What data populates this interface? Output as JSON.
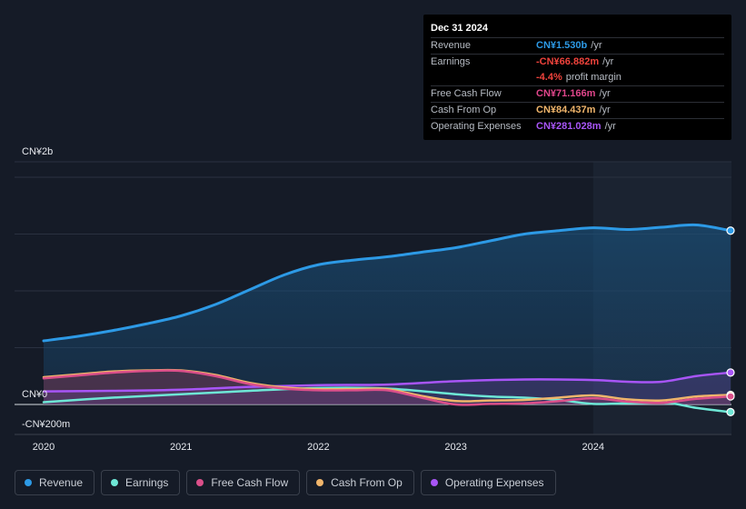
{
  "tooltip": {
    "date": "Dec 31 2024",
    "rows": [
      {
        "label": "Revenue",
        "value": "CN¥1.530b",
        "unit": "/yr",
        "color": "#2d9ae6"
      },
      {
        "label": "Earnings",
        "value": "-CN¥66.882m",
        "unit": "/yr",
        "color": "#f0433c"
      },
      {
        "label": "",
        "value": "-4.4%",
        "unit": "profit margin",
        "color": "#f0433c"
      },
      {
        "label": "Free Cash Flow",
        "value": "CN¥71.166m",
        "unit": "/yr",
        "color": "#e0468b"
      },
      {
        "label": "Cash From Op",
        "value": "CN¥84.437m",
        "unit": "/yr",
        "color": "#f0b56b"
      },
      {
        "label": "Operating Expenses",
        "value": "CN¥281.028m",
        "unit": "/yr",
        "color": "#a855f7"
      }
    ]
  },
  "legend": [
    {
      "label": "Revenue",
      "color": "#2d9ae6"
    },
    {
      "label": "Earnings",
      "color": "#6ee7d6"
    },
    {
      "label": "Free Cash Flow",
      "color": "#db4f8a"
    },
    {
      "label": "Cash From Op",
      "color": "#f0b56b"
    },
    {
      "label": "Operating Expenses",
      "color": "#a855f7"
    }
  ],
  "chart_data": {
    "type": "line",
    "y_tick_labels": [
      {
        "value": 2000,
        "label": "CN¥2b"
      },
      {
        "value": 0,
        "label": "CN¥0"
      },
      {
        "value": -200,
        "label": "-CN¥200m"
      }
    ],
    "x_tick_labels": [
      {
        "value": 2020,
        "label": "2020"
      },
      {
        "value": 2021,
        "label": "2021"
      },
      {
        "value": 2022,
        "label": "2022"
      },
      {
        "value": 2023,
        "label": "2023"
      },
      {
        "value": 2024,
        "label": "2024"
      }
    ],
    "xlim": [
      2019.8,
      2025.0
    ],
    "ylim": [
      -200,
      1600
    ],
    "highlight_from": 2024,
    "series": [
      {
        "name": "Revenue",
        "color": "#2d9ae6",
        "fill": true,
        "x": [
          2020.0,
          2020.25,
          2020.5,
          2020.75,
          2021.0,
          2021.25,
          2021.5,
          2021.75,
          2022.0,
          2022.25,
          2022.5,
          2022.75,
          2023.0,
          2023.25,
          2023.5,
          2023.75,
          2024.0,
          2024.25,
          2024.5,
          2024.75,
          2025.0
        ],
        "y": [
          560,
          600,
          650,
          710,
          780,
          880,
          1010,
          1140,
          1230,
          1270,
          1300,
          1340,
          1380,
          1440,
          1500,
          1530,
          1555,
          1540,
          1560,
          1580,
          1530
        ]
      },
      {
        "name": "Earnings",
        "color": "#6ee7d6",
        "x": [
          2020.0,
          2020.5,
          2021.0,
          2021.5,
          2022.0,
          2022.5,
          2023.0,
          2023.25,
          2023.5,
          2023.75,
          2024.0,
          2024.25,
          2024.5,
          2024.6,
          2024.75,
          2025.0
        ],
        "y": [
          20,
          60,
          90,
          120,
          145,
          140,
          90,
          70,
          60,
          40,
          5,
          10,
          15,
          5,
          -30,
          -67
        ]
      },
      {
        "name": "Free Cash Flow",
        "color": "#db4f8a",
        "fill": true,
        "x": [
          2020.0,
          2020.25,
          2020.5,
          2020.75,
          2021.0,
          2021.25,
          2021.5,
          2021.75,
          2022.0,
          2022.25,
          2022.5,
          2022.75,
          2023.0,
          2023.25,
          2023.5,
          2023.75,
          2024.0,
          2024.25,
          2024.5,
          2024.75,
          2025.0
        ],
        "y": [
          230,
          255,
          280,
          295,
          295,
          250,
          180,
          140,
          125,
          125,
          125,
          60,
          0,
          5,
          10,
          30,
          55,
          25,
          15,
          50,
          71
        ]
      },
      {
        "name": "Cash From Op",
        "color": "#f0b56b",
        "x": [
          2020.0,
          2020.25,
          2020.5,
          2020.75,
          2021.0,
          2021.25,
          2021.5,
          2021.75,
          2022.0,
          2022.25,
          2022.5,
          2022.75,
          2023.0,
          2023.25,
          2023.5,
          2023.75,
          2024.0,
          2024.25,
          2024.5,
          2024.75,
          2025.0
        ],
        "y": [
          240,
          265,
          290,
          300,
          300,
          260,
          190,
          150,
          135,
          135,
          135,
          75,
          30,
          35,
          40,
          60,
          80,
          45,
          35,
          70,
          84
        ]
      },
      {
        "name": "Operating Expenses",
        "color": "#a855f7",
        "fill": true,
        "x": [
          2020.0,
          2020.5,
          2021.0,
          2021.5,
          2022.0,
          2022.5,
          2023.0,
          2023.5,
          2024.0,
          2024.25,
          2024.5,
          2024.75,
          2025.0
        ],
        "y": [
          115,
          120,
          130,
          155,
          170,
          175,
          205,
          220,
          215,
          200,
          200,
          250,
          281
        ]
      }
    ]
  }
}
